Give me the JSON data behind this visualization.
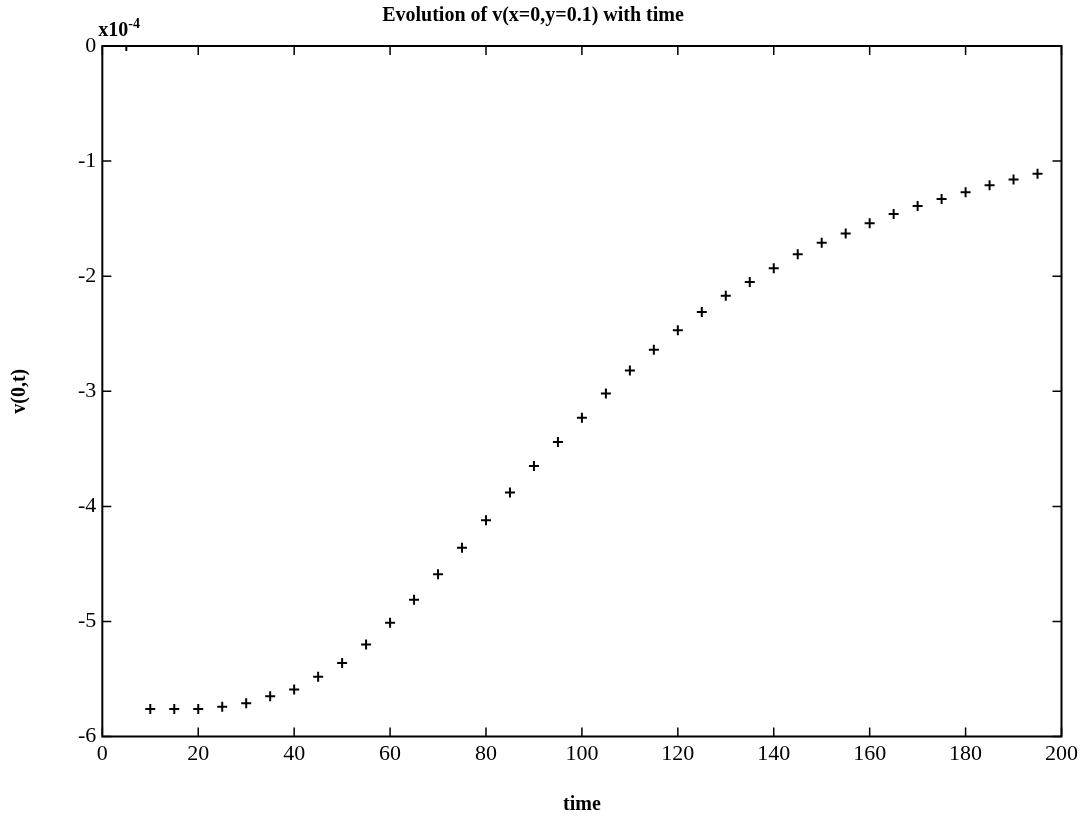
{
  "chart_data": {
    "type": "scatter",
    "title": "Evolution of v(x=0,y=0.1) with time",
    "xlabel": "time",
    "ylabel": "v(0,t)",
    "annotations": [
      "x10$^{-4}$"
    ],
    "x": [
      5,
      10,
      15,
      20,
      25,
      30,
      35,
      40,
      45,
      50,
      55,
      60,
      65,
      70,
      75,
      80,
      85,
      90,
      95,
      100,
      105,
      110,
      115,
      120,
      125,
      130,
      135,
      140,
      145,
      150,
      155,
      160,
      165,
      170,
      175,
      180,
      185,
      190,
      195
    ],
    "series": [
      {
        "color": "#000000",
        "values": [
          0,
          -5.76,
          -5.76,
          -5.76,
          -5.74,
          -5.71,
          -5.65,
          -5.59,
          -5.48,
          -5.36,
          -5.2,
          -5.01,
          -4.81,
          -4.59,
          -4.36,
          -4.12,
          -3.88,
          -3.65,
          -3.44,
          -3.23,
          -3.02,
          -2.82,
          -2.64,
          -2.47,
          -2.31,
          -2.17,
          -2.05,
          -1.93,
          -1.81,
          -1.71,
          -1.63,
          -1.54,
          -1.46,
          -1.39,
          -1.33,
          -1.27,
          -1.21,
          -1.16,
          -1.11
        ]
      }
    ],
    "marker": "cross",
    "xlim": [
      0,
      200
    ],
    "xticks": [
      0,
      20,
      40,
      60,
      80,
      100,
      120,
      140,
      160,
      180,
      200
    ],
    "ylim": [
      -6,
      0
    ],
    "yticks": [
      -6,
      -5,
      -4,
      -3,
      -2,
      -1,
      0
    ],
    "grid": false,
    "legend": false
  }
}
